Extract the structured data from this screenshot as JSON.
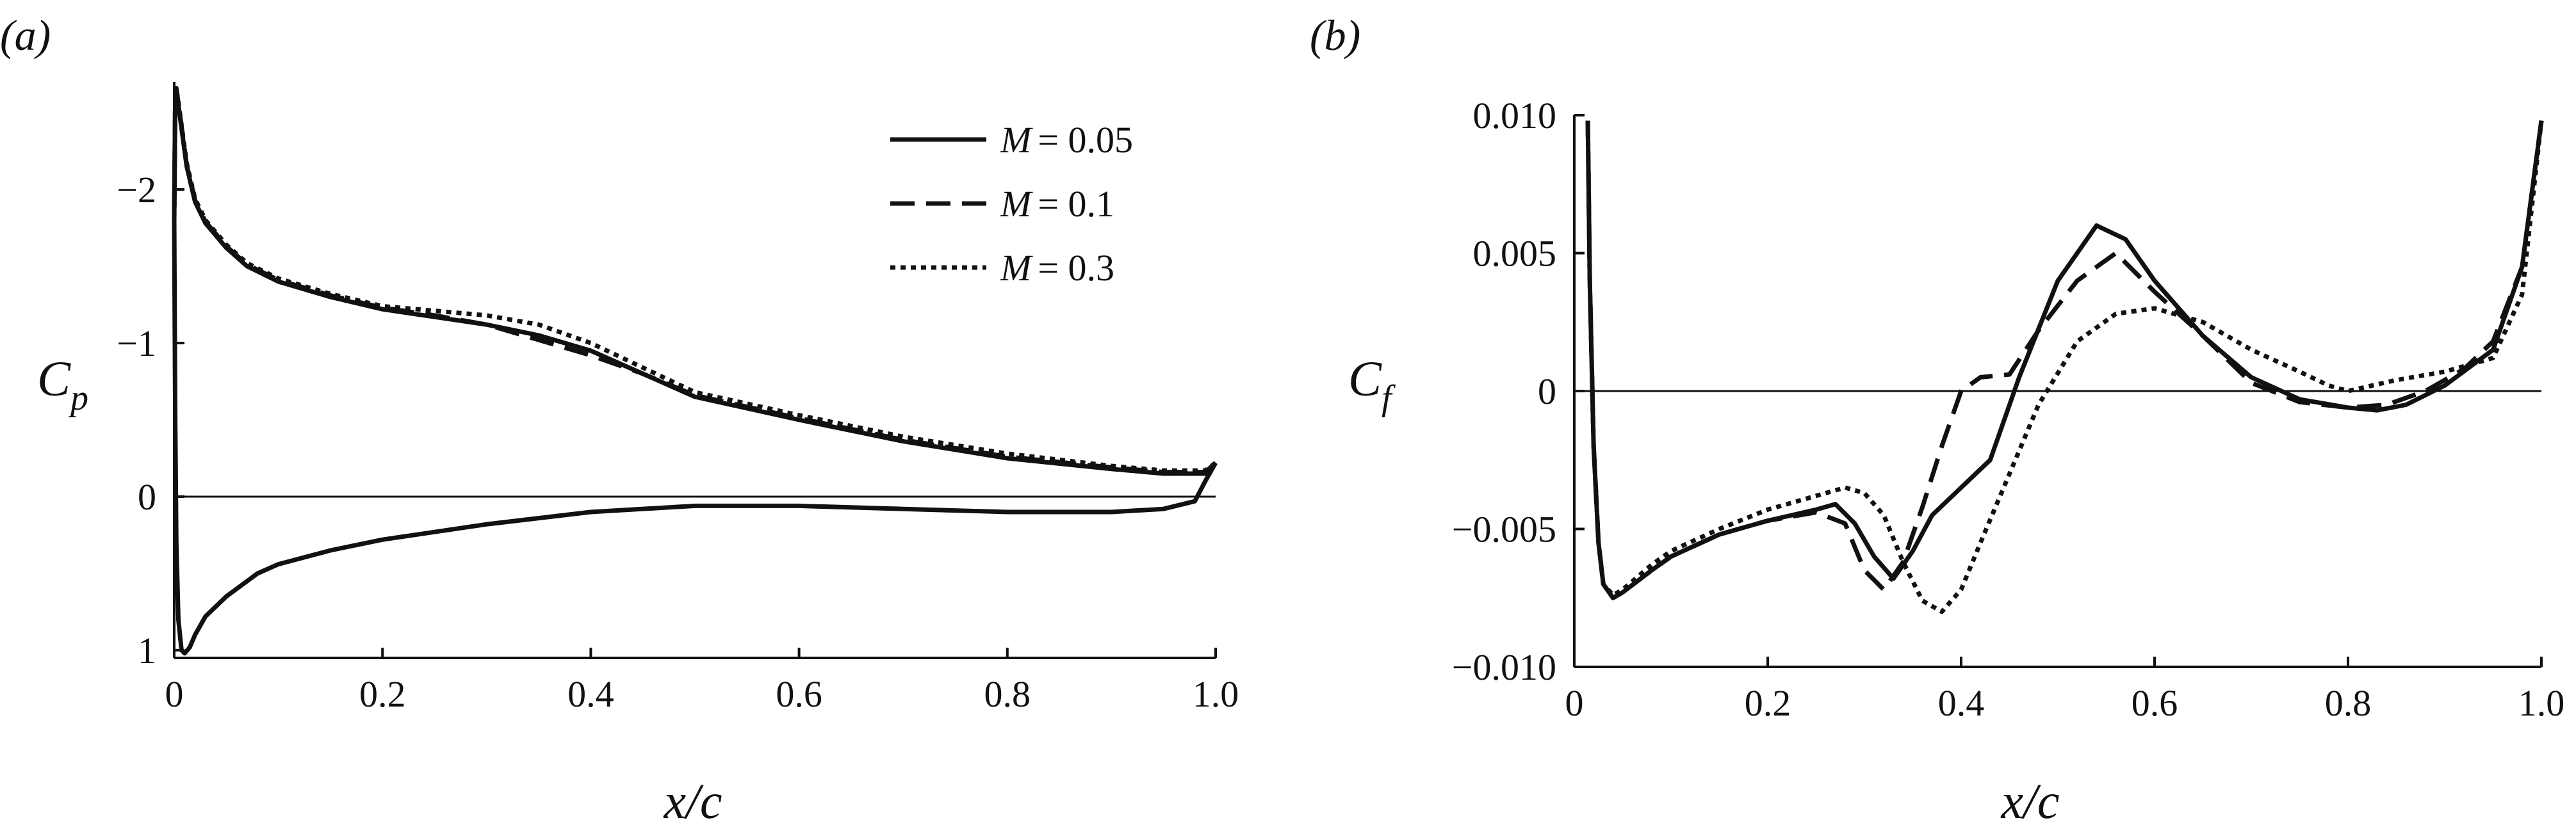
{
  "chart_data": [
    {
      "panel_label": "(a)",
      "type": "line",
      "xlabel": "x/c",
      "ylabel": "C_p",
      "ylabel_main": "C",
      "ylabel_sub": "p",
      "xlim": [
        0,
        1.0
      ],
      "ylim": [
        1.05,
        -2.7
      ],
      "y_axis_inverted": true,
      "xticks": [
        0,
        0.2,
        0.4,
        0.6,
        0.8,
        1.0
      ],
      "xtick_labels": [
        "0",
        "0.2",
        "0.4",
        "0.6",
        "0.8",
        "1.0"
      ],
      "yticks": [
        -2,
        -1,
        0,
        1
      ],
      "ytick_labels": [
        "−2",
        "−1",
        "0",
        "1"
      ],
      "zero_line": true,
      "legend": {
        "placement": "top-right",
        "entries": [
          {
            "label": "M = 0.05",
            "prefix": "M",
            "value_text": "= 0.05",
            "style": "solid"
          },
          {
            "label": "M = 0.1",
            "prefix": "M",
            "value_text": "= 0.1",
            "style": "dashed"
          },
          {
            "label": "M = 0.3",
            "prefix": "M",
            "value_text": "= 0.3",
            "style": "dotted"
          }
        ]
      },
      "series": [
        {
          "name": "M = 0.05",
          "style": "solid",
          "x": [
            1.0,
            0.99,
            0.95,
            0.9,
            0.8,
            0.7,
            0.6,
            0.5,
            0.45,
            0.4,
            0.35,
            0.3,
            0.25,
            0.2,
            0.15,
            0.1,
            0.07,
            0.05,
            0.03,
            0.02,
            0.012,
            0.008,
            0.004,
            0.002,
            0.001,
            0.0,
            0.001,
            0.002,
            0.004,
            0.007,
            0.01,
            0.015,
            0.02,
            0.03,
            0.05,
            0.08,
            0.1,
            0.15,
            0.2,
            0.3,
            0.4,
            0.5,
            0.6,
            0.7,
            0.8,
            0.9,
            0.95,
            0.98,
            0.99,
            1.0
          ],
          "y": [
            -0.22,
            -0.15,
            -0.15,
            -0.18,
            -0.25,
            -0.36,
            -0.5,
            -0.65,
            -0.8,
            -0.95,
            -1.05,
            -1.12,
            -1.17,
            -1.22,
            -1.3,
            -1.4,
            -1.5,
            -1.62,
            -1.78,
            -1.92,
            -2.15,
            -2.35,
            -2.55,
            -2.65,
            -2.6,
            -1.8,
            -0.5,
            0.3,
            0.8,
            1.0,
            1.02,
            0.98,
            0.9,
            0.78,
            0.65,
            0.5,
            0.44,
            0.35,
            0.28,
            0.18,
            0.1,
            0.06,
            0.06,
            0.08,
            0.1,
            0.1,
            0.08,
            0.03,
            -0.1,
            -0.22
          ]
        },
        {
          "name": "M = 0.1",
          "style": "dashed",
          "x": [
            1.0,
            0.99,
            0.95,
            0.9,
            0.8,
            0.7,
            0.6,
            0.5,
            0.45,
            0.4,
            0.35,
            0.3,
            0.25,
            0.2,
            0.15,
            0.1,
            0.07,
            0.05,
            0.03,
            0.02,
            0.012,
            0.008,
            0.004,
            0.002,
            0.001,
            0.0
          ],
          "y": [
            -0.22,
            -0.16,
            -0.16,
            -0.19,
            -0.26,
            -0.37,
            -0.51,
            -0.66,
            -0.8,
            -0.92,
            -1.02,
            -1.12,
            -1.18,
            -1.23,
            -1.31,
            -1.41,
            -1.51,
            -1.63,
            -1.79,
            -1.93,
            -2.16,
            -2.36,
            -2.56,
            -2.66,
            -2.61,
            -1.8
          ]
        },
        {
          "name": "M = 0.3",
          "style": "dotted",
          "x": [
            1.0,
            0.99,
            0.95,
            0.9,
            0.8,
            0.7,
            0.6,
            0.5,
            0.45,
            0.4,
            0.35,
            0.3,
            0.25,
            0.2,
            0.15,
            0.1,
            0.07,
            0.05,
            0.03,
            0.02,
            0.012,
            0.008,
            0.004,
            0.002,
            0.001,
            0.0
          ],
          "y": [
            -0.22,
            -0.17,
            -0.17,
            -0.2,
            -0.28,
            -0.39,
            -0.53,
            -0.68,
            -0.84,
            -1.0,
            -1.12,
            -1.18,
            -1.21,
            -1.24,
            -1.32,
            -1.42,
            -1.52,
            -1.64,
            -1.8,
            -1.94,
            -2.17,
            -2.37,
            -2.57,
            -2.66,
            -2.61,
            -1.8
          ]
        }
      ]
    },
    {
      "panel_label": "(b)",
      "type": "line",
      "xlabel": "x/c",
      "ylabel": "C_f",
      "ylabel_main": "C",
      "ylabel_sub": "f",
      "xlim": [
        0,
        1.0
      ],
      "ylim": [
        -0.01,
        0.01
      ],
      "xticks": [
        0,
        0.2,
        0.4,
        0.6,
        0.8,
        1.0
      ],
      "xtick_labels": [
        "0",
        "0.2",
        "0.4",
        "0.6",
        "0.8",
        "1.0"
      ],
      "yticks": [
        0.01,
        0.005,
        0,
        -0.005,
        -0.01
      ],
      "ytick_labels": [
        "0.010",
        "0.005",
        "0",
        "−0.005",
        "−0.010"
      ],
      "zero_line": true,
      "series": [
        {
          "name": "M = 0.05",
          "style": "solid",
          "x": [
            0.014,
            0.016,
            0.02,
            0.025,
            0.03,
            0.04,
            0.05,
            0.08,
            0.1,
            0.15,
            0.2,
            0.25,
            0.27,
            0.29,
            0.31,
            0.33,
            0.35,
            0.37,
            0.4,
            0.43,
            0.46,
            0.5,
            0.54,
            0.57,
            0.6,
            0.65,
            0.7,
            0.75,
            0.8,
            0.83,
            0.86,
            0.9,
            0.95,
            0.98,
            1.0
          ],
          "y": [
            0.0098,
            0.004,
            -0.002,
            -0.0055,
            -0.007,
            -0.0075,
            -0.0073,
            -0.0065,
            -0.006,
            -0.0052,
            -0.0047,
            -0.0043,
            -0.0041,
            -0.0048,
            -0.006,
            -0.0068,
            -0.0058,
            -0.0045,
            -0.0035,
            -0.0025,
            0.0005,
            0.004,
            0.006,
            0.0055,
            0.004,
            0.002,
            0.0005,
            -0.0003,
            -0.0006,
            -0.0007,
            -0.0005,
            0.0002,
            0.0015,
            0.0045,
            0.0098
          ]
        },
        {
          "name": "M = 0.1",
          "style": "dashed",
          "x": [
            0.014,
            0.016,
            0.02,
            0.025,
            0.03,
            0.04,
            0.05,
            0.08,
            0.1,
            0.15,
            0.2,
            0.25,
            0.28,
            0.3,
            0.32,
            0.34,
            0.36,
            0.38,
            0.4,
            0.42,
            0.45,
            0.48,
            0.52,
            0.56,
            0.6,
            0.65,
            0.7,
            0.75,
            0.8,
            0.84,
            0.88,
            0.92,
            0.95,
            0.98,
            1.0
          ],
          "y": [
            0.0098,
            0.004,
            -0.002,
            -0.0055,
            -0.007,
            -0.0075,
            -0.0073,
            -0.0065,
            -0.006,
            -0.0052,
            -0.0047,
            -0.0044,
            -0.0048,
            -0.0065,
            -0.0072,
            -0.0062,
            -0.0042,
            -0.002,
            0.0,
            0.0005,
            0.0006,
            0.0022,
            0.004,
            0.005,
            0.0036,
            0.002,
            0.0003,
            -0.0004,
            -0.0006,
            -0.0005,
            0.0,
            0.0008,
            0.0018,
            0.0045,
            0.0098
          ]
        },
        {
          "name": "M = 0.3",
          "style": "dotted",
          "x": [
            0.014,
            0.016,
            0.02,
            0.025,
            0.03,
            0.04,
            0.05,
            0.08,
            0.1,
            0.15,
            0.2,
            0.25,
            0.28,
            0.3,
            0.32,
            0.34,
            0.36,
            0.38,
            0.4,
            0.42,
            0.45,
            0.48,
            0.52,
            0.56,
            0.6,
            0.65,
            0.7,
            0.75,
            0.78,
            0.8,
            0.85,
            0.9,
            0.95,
            0.98,
            1.0
          ],
          "y": [
            0.0098,
            0.004,
            -0.002,
            -0.0055,
            -0.007,
            -0.0074,
            -0.0072,
            -0.0063,
            -0.0058,
            -0.005,
            -0.0043,
            -0.0038,
            -0.0035,
            -0.0037,
            -0.0045,
            -0.0062,
            -0.0076,
            -0.008,
            -0.0072,
            -0.0055,
            -0.003,
            -0.0005,
            0.0018,
            0.0028,
            0.003,
            0.0025,
            0.0015,
            0.0007,
            0.0002,
            0.0,
            0.0004,
            0.0007,
            0.0012,
            0.0035,
            0.0098
          ]
        }
      ]
    }
  ]
}
